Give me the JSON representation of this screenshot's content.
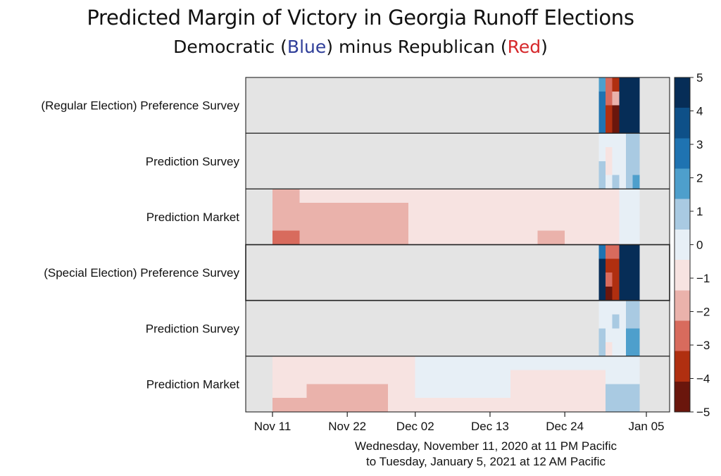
{
  "title": "Predicted Margin of  Victory in Georgia Runoff Elections",
  "subtitle": {
    "prefix": "Democratic (",
    "blue_word": "Blue",
    "middle": ") minus Republican (",
    "red_word": "Red",
    "suffix": ")"
  },
  "x_label": {
    "line1": "Wednesday, November 11, 2020 at 11 PM Pacific",
    "line2": "to Tuesday, January 5, 2021 at 12 AM Pacific"
  },
  "chart_data": {
    "type": "heatmap",
    "x_start": "2020-11-11",
    "x_end": "2021-01-05",
    "x_ticks": [
      {
        "date": "2020-11-11",
        "label": "Nov 11"
      },
      {
        "date": "2020-11-22",
        "label": "Nov 22"
      },
      {
        "date": "2020-12-02",
        "label": "Dec 02"
      },
      {
        "date": "2020-12-13",
        "label": "Dec 13"
      },
      {
        "date": "2020-12-24",
        "label": "Dec 24"
      },
      {
        "date": "2021-01-05",
        "label": "Jan 05"
      }
    ],
    "rows": [
      {
        "label": "(Regular Election) Preference Survey",
        "method": "survey"
      },
      {
        "label": "Prediction Survey",
        "method": "survey"
      },
      {
        "label": "Prediction Market",
        "method": "market"
      },
      {
        "label": "(Special Election) Preference Survey",
        "method": "survey"
      },
      {
        "label": "Prediction Survey",
        "method": "survey"
      },
      {
        "label": "Prediction Market",
        "method": "market"
      }
    ],
    "colorbar": {
      "min": -5,
      "max": 5,
      "ticks": [
        "5",
        "4",
        "3",
        "2",
        "1",
        "0",
        "−1",
        "−2",
        "−3",
        "−4",
        "−5"
      ],
      "colors": [
        "#062d57",
        "#0e5088",
        "#1f73b1",
        "#4e9fcc",
        "#a9cae2",
        "#e7eff6",
        "#f7e3e1",
        "#eab2ab",
        "#d86b5d",
        "#b02f10",
        "#6a160c"
      ]
    },
    "series": [
      {
        "row": 0,
        "segments": [
          {
            "start": "2020-12-29",
            "end": "2020-12-30",
            "values": [
              2,
              3,
              3,
              3
            ]
          },
          {
            "start": "2020-12-30",
            "end": "2020-12-31",
            "values": [
              -3,
              -3,
              -4,
              -4
            ]
          },
          {
            "start": "2020-12-31",
            "end": "2021-01-01",
            "values": [
              -4,
              -2,
              -5,
              -5
            ]
          },
          {
            "start": "2021-01-01",
            "end": "2021-01-04",
            "values": [
              5,
              5,
              5,
              5
            ]
          }
        ]
      },
      {
        "row": 1,
        "segments": [
          {
            "start": "2020-12-29",
            "end": "2020-12-30",
            "values": [
              0,
              0,
              1,
              1
            ]
          },
          {
            "start": "2020-12-30",
            "end": "2020-12-31",
            "values": [
              0,
              -1,
              -1,
              0
            ]
          },
          {
            "start": "2020-12-31",
            "end": "2021-01-01",
            "values": [
              0,
              0,
              0,
              1
            ]
          },
          {
            "start": "2021-01-01",
            "end": "2021-01-02",
            "values": [
              0,
              0,
              0,
              0
            ]
          },
          {
            "start": "2021-01-02",
            "end": "2021-01-03",
            "values": [
              1,
              1,
              1,
              1
            ]
          },
          {
            "start": "2021-01-03",
            "end": "2021-01-04",
            "values": [
              1,
              1,
              1,
              2
            ]
          }
        ]
      },
      {
        "row": 2,
        "segments": [
          {
            "start": "2020-11-11",
            "end": "2020-11-15",
            "values": [
              -2,
              -2,
              -2,
              -3
            ]
          },
          {
            "start": "2020-11-15",
            "end": "2020-12-01",
            "values": [
              -1,
              -2,
              -2,
              -2
            ]
          },
          {
            "start": "2020-12-01",
            "end": "2020-12-20",
            "values": [
              -1,
              -1,
              -1,
              -1
            ]
          },
          {
            "start": "2020-12-20",
            "end": "2020-12-24",
            "values": [
              -1,
              -1,
              -1,
              -2
            ]
          },
          {
            "start": "2020-12-24",
            "end": "2021-01-01",
            "values": [
              -1,
              -1,
              -1,
              -1
            ]
          },
          {
            "start": "2021-01-01",
            "end": "2021-01-04",
            "values": [
              0,
              0,
              0,
              0
            ]
          }
        ]
      },
      {
        "row": 3,
        "segments": [
          {
            "start": "2020-12-29",
            "end": "2020-12-30",
            "values": [
              3,
              5,
              5,
              5
            ]
          },
          {
            "start": "2020-12-30",
            "end": "2020-12-31",
            "values": [
              -3,
              -4,
              -3,
              -5
            ]
          },
          {
            "start": "2020-12-31",
            "end": "2021-01-01",
            "values": [
              -3,
              -4,
              -4,
              -4
            ]
          },
          {
            "start": "2021-01-01",
            "end": "2021-01-04",
            "values": [
              5,
              5,
              5,
              5
            ]
          }
        ]
      },
      {
        "row": 4,
        "segments": [
          {
            "start": "2020-12-29",
            "end": "2020-12-30",
            "values": [
              0,
              0,
              1,
              1
            ]
          },
          {
            "start": "2020-12-30",
            "end": "2020-12-31",
            "values": [
              0,
              0,
              0,
              -1
            ]
          },
          {
            "start": "2020-12-31",
            "end": "2021-01-01",
            "values": [
              0,
              1,
              0,
              0
            ]
          },
          {
            "start": "2021-01-01",
            "end": "2021-01-02",
            "values": [
              0,
              0,
              0,
              0
            ]
          },
          {
            "start": "2021-01-02",
            "end": "2021-01-03",
            "values": [
              1,
              1,
              2,
              2
            ]
          },
          {
            "start": "2021-01-03",
            "end": "2021-01-04",
            "values": [
              1,
              1,
              2,
              2
            ]
          }
        ]
      },
      {
        "row": 5,
        "segments": [
          {
            "start": "2020-11-11",
            "end": "2020-11-16",
            "values": [
              -1,
              -1,
              -1,
              -2
            ]
          },
          {
            "start": "2020-11-16",
            "end": "2020-11-28",
            "values": [
              -1,
              -1,
              -2,
              -2
            ]
          },
          {
            "start": "2020-11-28",
            "end": "2020-12-02",
            "values": [
              -1,
              -1,
              -1,
              -1
            ]
          },
          {
            "start": "2020-12-02",
            "end": "2020-12-16",
            "values": [
              0,
              0,
              0,
              -1
            ]
          },
          {
            "start": "2020-12-16",
            "end": "2020-12-30",
            "values": [
              0,
              -1,
              -1,
              -1
            ]
          },
          {
            "start": "2020-12-30",
            "end": "2021-01-04",
            "values": [
              0,
              0,
              1,
              1
            ]
          }
        ]
      }
    ]
  }
}
